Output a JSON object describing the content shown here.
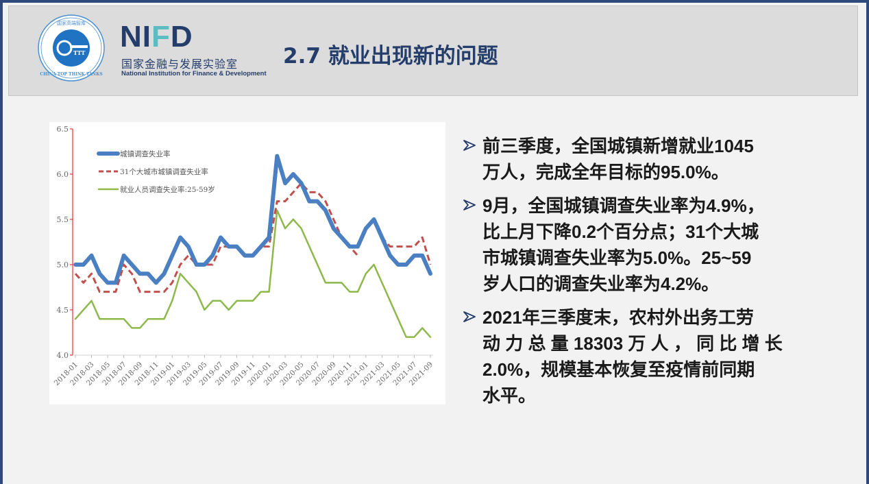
{
  "header": {
    "logo_seal_text": "国家高端智库 CHINA TOP THINK TANKS",
    "logo_text": "NIFD",
    "org_cn": "国家金融与发展实验室",
    "org_en": "National Institution for Finance & Development",
    "title": "2.7 就业出现新的问题"
  },
  "colors": {
    "navy": "#243d6b",
    "teal": "#5bbcc4",
    "blue_series": "#4a7fc1",
    "red_series": "#c0504d",
    "green_series": "#8db84a",
    "y_axis": "#ff0000"
  },
  "bullets": [
    {
      "icon": "arrowhead-bullet-icon",
      "lines": [
        "前三季度，全国城镇新增就业1045",
        "万人，完成全年目标的95.0%。"
      ]
    },
    {
      "icon": "arrowhead-bullet-icon",
      "lines": [
        "9月，全国城镇调查失业率为4.9%，",
        "比上月下降0.2个百分点；31个大城",
        "市城镇调查失业率为5.0%。25~59",
        "岁人口的调查失业率为4.2%。"
      ]
    },
    {
      "icon": "arrowhead-bullet-icon",
      "lines": [
        "2021年三季度末，农村外出务工劳",
        "动 力 总 量 18303 万 人 ， 同 比 增 长",
        "2.0%，规模基本恢复至疫情前同期",
        "水平。"
      ]
    }
  ],
  "chart_data": {
    "type": "line",
    "ylim": [
      4.0,
      6.5
    ],
    "yticks": [
      "4.0",
      "4.5",
      "5.0",
      "5.5",
      "6.0",
      "6.5"
    ],
    "xtick_labels": [
      "2018-01",
      "2018-03",
      "2018-05",
      "2018-07",
      "2018-09",
      "2018-11",
      "2019-01",
      "2019-03",
      "2019-05",
      "2019-07",
      "2019-09",
      "2019-11",
      "2020-01",
      "2020-03",
      "2020-05",
      "2020-07",
      "2020-09",
      "2020-11",
      "2021-01",
      "2021-03",
      "2021-05",
      "2021-07",
      "2021-09"
    ],
    "x_start": "2018-01",
    "x_end": "2021-09",
    "legend_placement": "top-left",
    "grid": false,
    "series": [
      {
        "name": "城镇调查失业率",
        "style": "thick-solid",
        "color": "#4a7fc1",
        "values": [
          5.0,
          5.0,
          5.1,
          4.9,
          4.8,
          4.8,
          5.1,
          5.0,
          4.9,
          4.9,
          4.8,
          4.9,
          5.1,
          5.3,
          5.2,
          5.0,
          5.0,
          5.1,
          5.3,
          5.2,
          5.2,
          5.1,
          5.1,
          5.2,
          5.3,
          6.2,
          5.9,
          6.0,
          5.9,
          5.7,
          5.7,
          5.6,
          5.4,
          5.3,
          5.2,
          5.2,
          5.4,
          5.5,
          5.3,
          5.1,
          5.0,
          5.0,
          5.1,
          5.1,
          4.9
        ]
      },
      {
        "name": "31个大城市城镇调查失业率",
        "style": "dashed",
        "color": "#c0504d",
        "values": [
          4.9,
          4.8,
          4.9,
          4.7,
          4.7,
          4.7,
          5.0,
          4.9,
          4.7,
          4.7,
          4.7,
          4.7,
          4.8,
          5.0,
          5.1,
          5.0,
          5.0,
          5.0,
          5.2,
          5.2,
          5.2,
          5.1,
          5.1,
          5.2,
          5.2,
          5.7,
          5.7,
          5.8,
          5.9,
          5.8,
          5.8,
          5.7,
          5.5,
          5.3,
          5.2,
          5.1,
          null,
          5.5,
          5.3,
          5.2,
          5.2,
          5.2,
          5.2,
          5.3,
          5.0
        ]
      },
      {
        "name": "就业人员调查失业率:25-59岁",
        "style": "solid",
        "color": "#8db84a",
        "values": [
          4.4,
          4.5,
          4.6,
          4.4,
          4.4,
          4.4,
          4.4,
          4.3,
          4.3,
          4.4,
          4.4,
          4.4,
          4.6,
          4.9,
          4.8,
          4.7,
          4.5,
          4.6,
          4.6,
          4.5,
          4.6,
          4.6,
          4.6,
          4.7,
          4.7,
          5.6,
          5.4,
          5.5,
          5.4,
          5.2,
          5.0,
          4.8,
          4.8,
          4.8,
          4.7,
          4.7,
          4.9,
          5.0,
          4.8,
          4.6,
          4.4,
          4.2,
          4.2,
          4.3,
          4.2
        ]
      }
    ]
  }
}
